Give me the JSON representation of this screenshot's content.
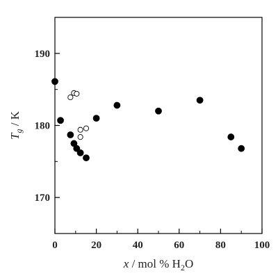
{
  "chart_data": {
    "type": "scatter",
    "title": "",
    "xlabel": {
      "var": "x",
      "rest": " / mol % H",
      "sub": "2",
      "tail": "O"
    },
    "ylabel": {
      "var": "T",
      "sub": "g",
      "rest": " / K"
    },
    "xlim": [
      0,
      100
    ],
    "ylim": [
      165,
      195
    ],
    "x_ticks": [
      0,
      20,
      40,
      60,
      80,
      100
    ],
    "y_ticks": [
      170,
      180,
      190
    ],
    "x_minor_step": 10,
    "y_minor_step": 5,
    "grid": false,
    "legend": "none",
    "series": [
      {
        "marker": "filled-circle",
        "color": "#000000",
        "points": [
          {
            "x": 0,
            "y": 186.1
          },
          {
            "x": 2.7,
            "y": 180.7
          },
          {
            "x": 7.5,
            "y": 178.7
          },
          {
            "x": 9.2,
            "y": 177.5
          },
          {
            "x": 10.5,
            "y": 176.8
          },
          {
            "x": 12.3,
            "y": 176.2
          },
          {
            "x": 15.1,
            "y": 175.5
          },
          {
            "x": 20,
            "y": 181
          },
          {
            "x": 30,
            "y": 182.8
          },
          {
            "x": 50,
            "y": 182
          },
          {
            "x": 70,
            "y": 183.5
          },
          {
            "x": 85,
            "y": 178.4
          },
          {
            "x": 90,
            "y": 176.8
          }
        ]
      },
      {
        "marker": "open-circle",
        "color": "#000000",
        "points": [
          {
            "x": 7.5,
            "y": 183.9
          },
          {
            "x": 9.2,
            "y": 184.5
          },
          {
            "x": 10.5,
            "y": 184.4
          },
          {
            "x": 12.3,
            "y": 179.4
          },
          {
            "x": 12.3,
            "y": 178.4
          },
          {
            "x": 15.1,
            "y": 179.6
          }
        ]
      }
    ]
  }
}
